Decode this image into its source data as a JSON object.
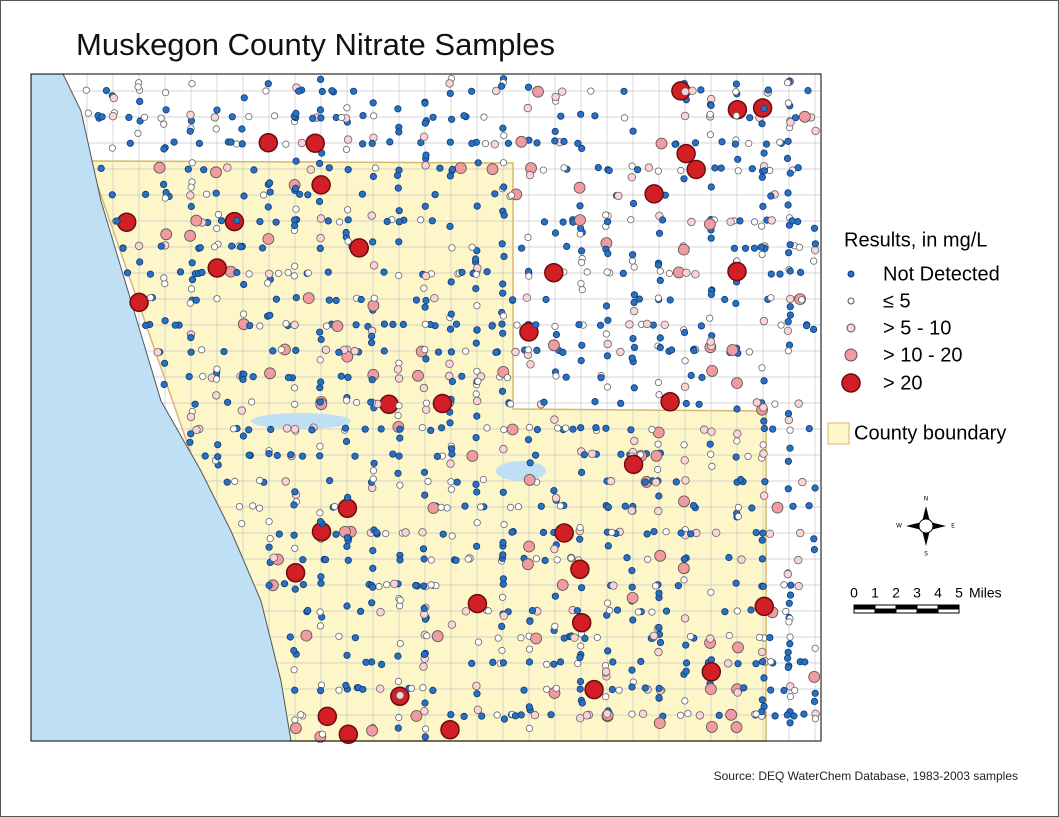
{
  "header": {
    "title": "Muskegon County Nitrate Samples"
  },
  "legend": {
    "title": "Results, in mg/L",
    "items": [
      "Not Detected",
      "≤ 5",
      "> 5 - 10",
      "> 10 - 20",
      "> 20"
    ],
    "county_boundary": "County boundary"
  },
  "compass": {
    "n": "N",
    "s": "S",
    "e": "E",
    "w": "W"
  },
  "scale_bar": {
    "labels": [
      "0",
      "1",
      "2",
      "3",
      "4",
      "5"
    ],
    "unit": "Miles"
  },
  "footer": {
    "source": "Source: DEQ WaterChem Database, 1983-2003 samples"
  }
}
